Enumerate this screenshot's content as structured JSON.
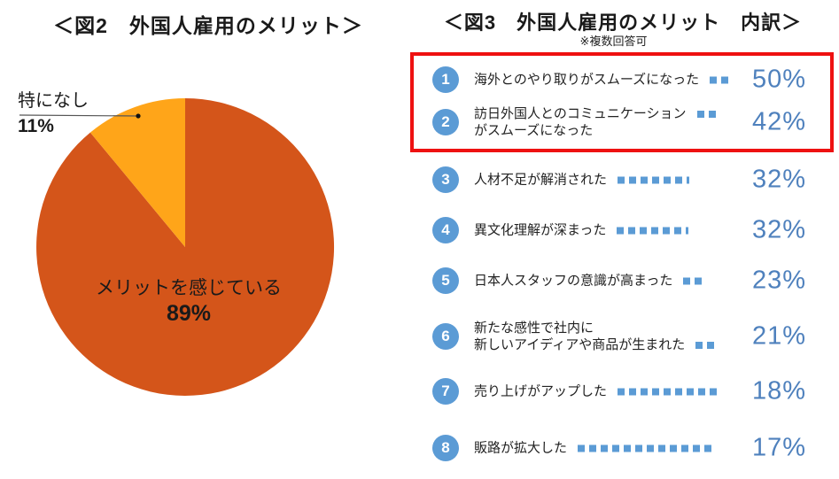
{
  "colors": {
    "pie_main": "#D4551A",
    "pie_secondary": "#FFA519",
    "rank_circle": "#5B9BD5",
    "leader_dot": "#5B9BD5",
    "percent_text": "#4F81BD",
    "highlight_border": "#EE1111",
    "callout_line": "#555555"
  },
  "chart_data": [
    {
      "type": "pie",
      "title": "＜図2　外国人雇用のメリット＞",
      "start_angle_deg": 0,
      "direction": "clockwise",
      "slices": [
        {
          "label": "メリットを感じている",
          "value": 89,
          "display": "89%",
          "color": "#D4551A",
          "label_position": "inside"
        },
        {
          "label": "特になし",
          "value": 11,
          "display": "11%",
          "color": "#FFA519",
          "label_position": "callout-left"
        }
      ]
    },
    {
      "type": "table",
      "title": "＜図3　外国人雇用のメリット　内訳＞",
      "note": "※複数回答可",
      "columns": [
        "rank",
        "answer",
        "percent"
      ],
      "highlighted_ranks": [
        "1",
        "2"
      ],
      "items": [
        {
          "rank": "1",
          "lines": [
            "海外とのやり取りがスムーズになった"
          ],
          "dots": 2,
          "half_dot": false,
          "dots_line": 0,
          "percent": "50%",
          "highlighted": true
        },
        {
          "rank": "2",
          "lines": [
            "訪日外国人とのコミュニケーション",
            "がスムーズになった"
          ],
          "dots": 2,
          "half_dot": false,
          "dots_line": 0,
          "percent": "42%",
          "highlighted": true
        },
        {
          "rank": "3",
          "lines": [
            "人材不足が解消された"
          ],
          "dots": 6,
          "half_dot": true,
          "dots_line": 0,
          "percent": "32%",
          "highlighted": false
        },
        {
          "rank": "4",
          "lines": [
            "異文化理解が深まった"
          ],
          "dots": 6,
          "half_dot": true,
          "dots_line": 0,
          "percent": "32%",
          "highlighted": false
        },
        {
          "rank": "5",
          "lines": [
            "日本人スタッフの意識が高まった"
          ],
          "dots": 2,
          "half_dot": false,
          "dots_line": 0,
          "percent": "23%",
          "highlighted": false
        },
        {
          "rank": "6",
          "lines": [
            "新たな感性で社内に",
            "新しいアイディアや商品が生まれた"
          ],
          "dots": 2,
          "half_dot": false,
          "dots_line": 1,
          "percent": "21%",
          "highlighted": false
        },
        {
          "rank": "7",
          "lines": [
            "売り上げがアップした"
          ],
          "dots": 9,
          "half_dot": false,
          "dots_line": 0,
          "percent": "18%",
          "highlighted": false
        },
        {
          "rank": "8",
          "lines": [
            "販路が拡大した"
          ],
          "dots": 12,
          "half_dot": false,
          "dots_line": 0,
          "percent": "17%",
          "highlighted": false
        }
      ]
    }
  ]
}
